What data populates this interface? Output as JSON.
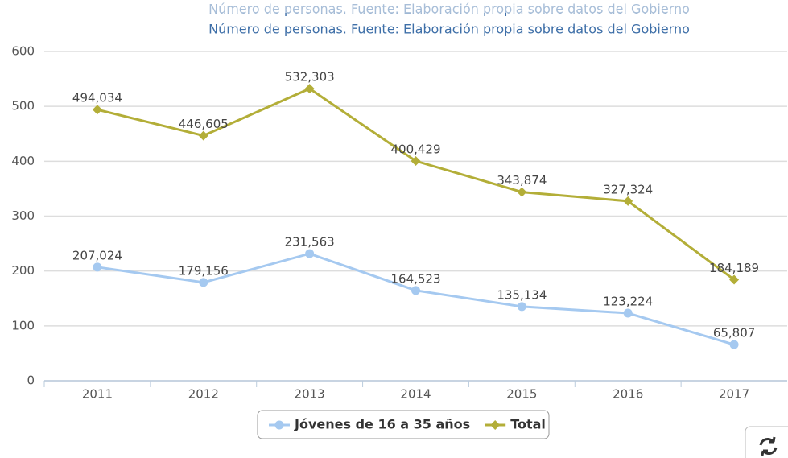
{
  "chart_data": {
    "type": "line",
    "subtitle": "Número de personas. Fuente: Elaboración propia sobre datos del Gobierno",
    "categories": [
      "2011",
      "2012",
      "2013",
      "2014",
      "2015",
      "2016",
      "2017"
    ],
    "series": [
      {
        "name": "Jóvenes de 16 a 35 años",
        "color": "#a5c9f0",
        "marker": "circle",
        "values": [
          207.024,
          179.156,
          231.563,
          164.523,
          135.134,
          123.224,
          65.807
        ],
        "value_labels": [
          "207,024",
          "179,156",
          "231,563",
          "164,523",
          "135,134",
          "123,224",
          "65,807"
        ]
      },
      {
        "name": "Total",
        "color": "#b3ae38",
        "marker": "diamond",
        "values": [
          494.034,
          446.605,
          532.303,
          400.429,
          343.874,
          327.324,
          184.189
        ],
        "value_labels": [
          "494,034",
          "446,605",
          "532,303",
          "400,429",
          "343,874",
          "327,324",
          "184,189"
        ]
      }
    ],
    "ylim": [
      0,
      600
    ],
    "yticks": [
      0,
      100,
      200,
      300,
      400,
      500,
      600
    ],
    "grid": true,
    "legend": "bottom"
  }
}
